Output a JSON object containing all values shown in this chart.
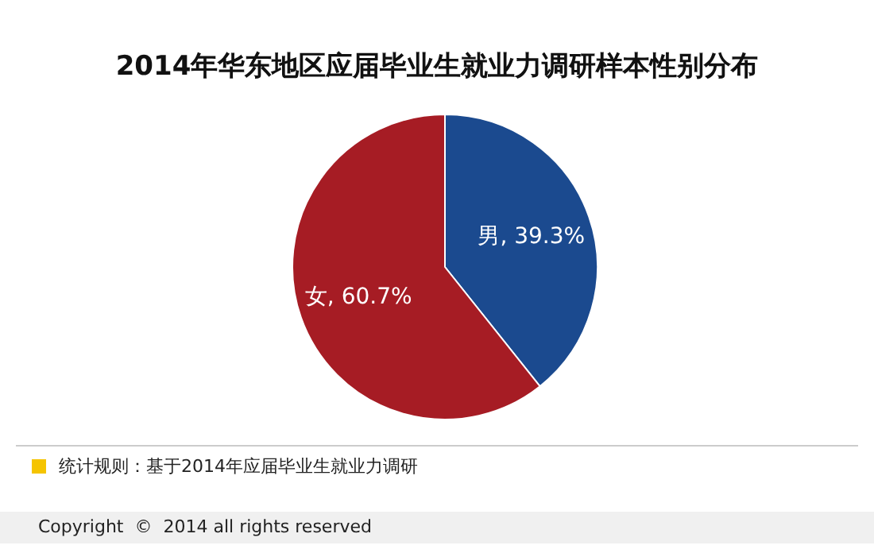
{
  "chart_data": {
    "type": "pie",
    "title": "2014年华东地区应届毕业生就业力调研样本性别分布",
    "categories": [
      "男",
      "女"
    ],
    "values": [
      39.3,
      60.7
    ],
    "colors": [
      "#1b4a8f",
      "#a61c24"
    ],
    "value_labels": [
      "39.3%",
      "60.7%"
    ],
    "annotations": [
      "统计规则：基于2014年应届毕业生就业力调研",
      "Copyright  ©  2014 all rights reserved"
    ]
  }
}
